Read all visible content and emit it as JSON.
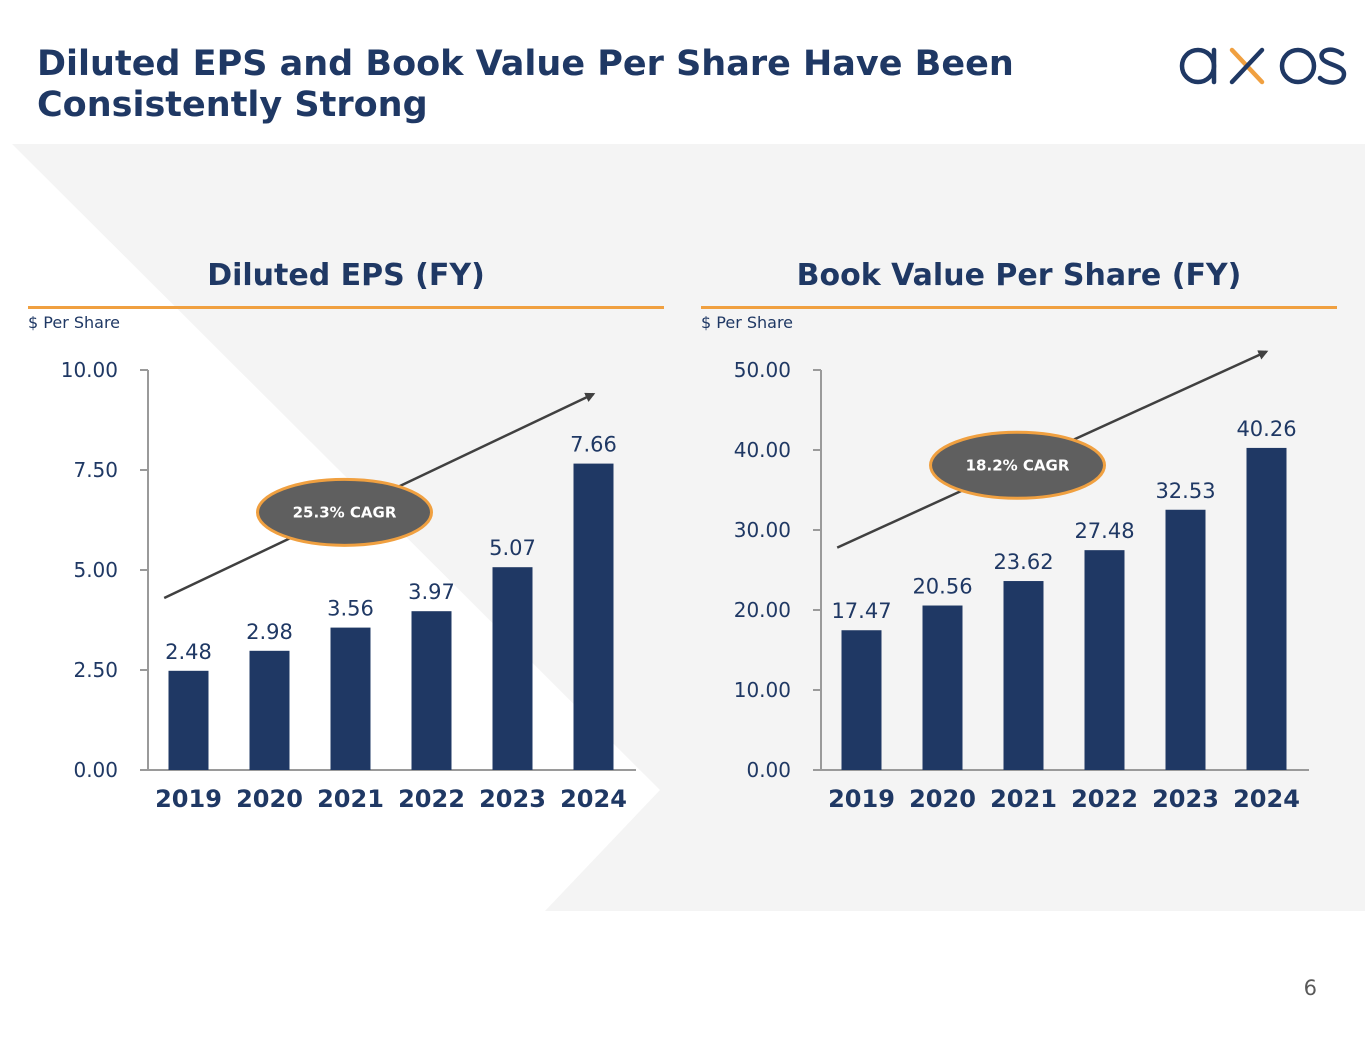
{
  "slide": {
    "title_line1": "Diluted EPS and Book Value Per Share Have Been",
    "title_line2": "Consistently Strong",
    "page_number": "6"
  },
  "logo": {
    "text": "axos",
    "icon": "axos-logo",
    "color": "#1f3864",
    "accent": "#f0a040"
  },
  "colors": {
    "bar": "#1f3864",
    "rule": "#f0a040",
    "badge_fill": "#5f5f5f",
    "badge_border": "#f0a040",
    "background": "#f4f4f4"
  },
  "panels": [
    {
      "title": "Diluted EPS (FY)",
      "unit": "$ Per Share"
    },
    {
      "title": "Book Value Per Share (FY)",
      "unit": "$ Per Share"
    }
  ],
  "chart_data": [
    {
      "type": "bar",
      "title": "Diluted EPS (FY)",
      "ylabel": "$ Per Share",
      "categories": [
        "2019",
        "2020",
        "2021",
        "2022",
        "2023",
        "2024"
      ],
      "values": [
        2.48,
        2.98,
        3.56,
        3.97,
        5.07,
        7.66
      ],
      "value_labels": [
        "2.48",
        "2.98",
        "3.56",
        "3.97",
        "5.07",
        "7.66"
      ],
      "ylim": [
        0,
        10
      ],
      "yticks": [
        0,
        2.5,
        5,
        7.5,
        10
      ],
      "ytick_labels": [
        "0.00",
        "2.50",
        "5.00",
        "7.50",
        "10.00"
      ],
      "grid": false,
      "annotation": "25.3% CAGR",
      "trend_arrow": {
        "from": [
          -0.3,
          4.3
        ],
        "to": [
          5,
          9.4
        ]
      }
    },
    {
      "type": "bar",
      "title": "Book Value Per Share (FY)",
      "ylabel": "$ Per Share",
      "categories": [
        "2019",
        "2020",
        "2021",
        "2022",
        "2023",
        "2024"
      ],
      "values": [
        17.47,
        20.56,
        23.62,
        27.48,
        32.53,
        40.26
      ],
      "value_labels": [
        "17.47",
        "20.56",
        "23.62",
        "27.48",
        "32.53",
        "40.26"
      ],
      "ylim": [
        0,
        50
      ],
      "yticks": [
        0,
        10,
        20,
        30,
        40,
        50
      ],
      "ytick_labels": [
        "0.00",
        "10.00",
        "20.00",
        "30.00",
        "40.00",
        "50.00"
      ],
      "grid": false,
      "annotation": "18.2% CAGR",
      "trend_arrow": {
        "from": [
          -0.3,
          27.8
        ],
        "to": [
          5,
          52.3
        ]
      }
    }
  ]
}
